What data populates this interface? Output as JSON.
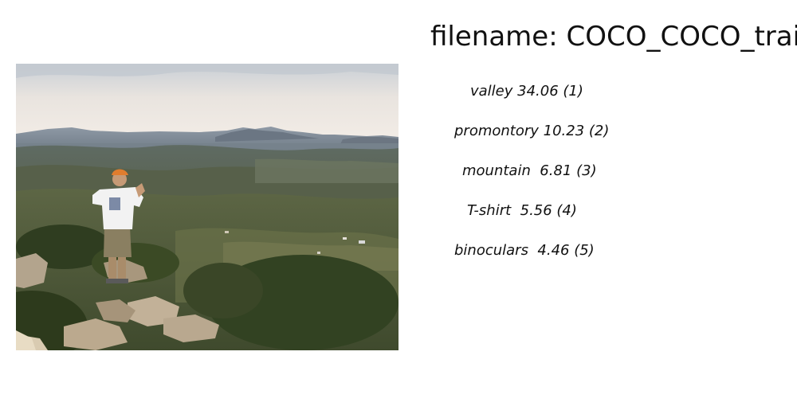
{
  "header": {
    "filename_text": "filename: COCO_COCO_train"
  },
  "photo": {
    "subject": "hiker-overlooking-valley"
  },
  "predictions": [
    {
      "label": "valley",
      "score": 34.06,
      "rank": 1,
      "text": "valley 34.06 (1)"
    },
    {
      "label": "promontory",
      "score": 10.23,
      "rank": 2,
      "text": "promontory 10.23 (2)"
    },
    {
      "label": "mountain",
      "score": 6.81,
      "rank": 3,
      "text": "mountain  6.81 (3)"
    },
    {
      "label": "T-shirt",
      "score": 5.56,
      "rank": 4,
      "text": "T-shirt  5.56 (4)"
    },
    {
      "label": "binoculars",
      "score": 4.46,
      "rank": 5,
      "text": "binoculars  4.46 (5)"
    }
  ]
}
